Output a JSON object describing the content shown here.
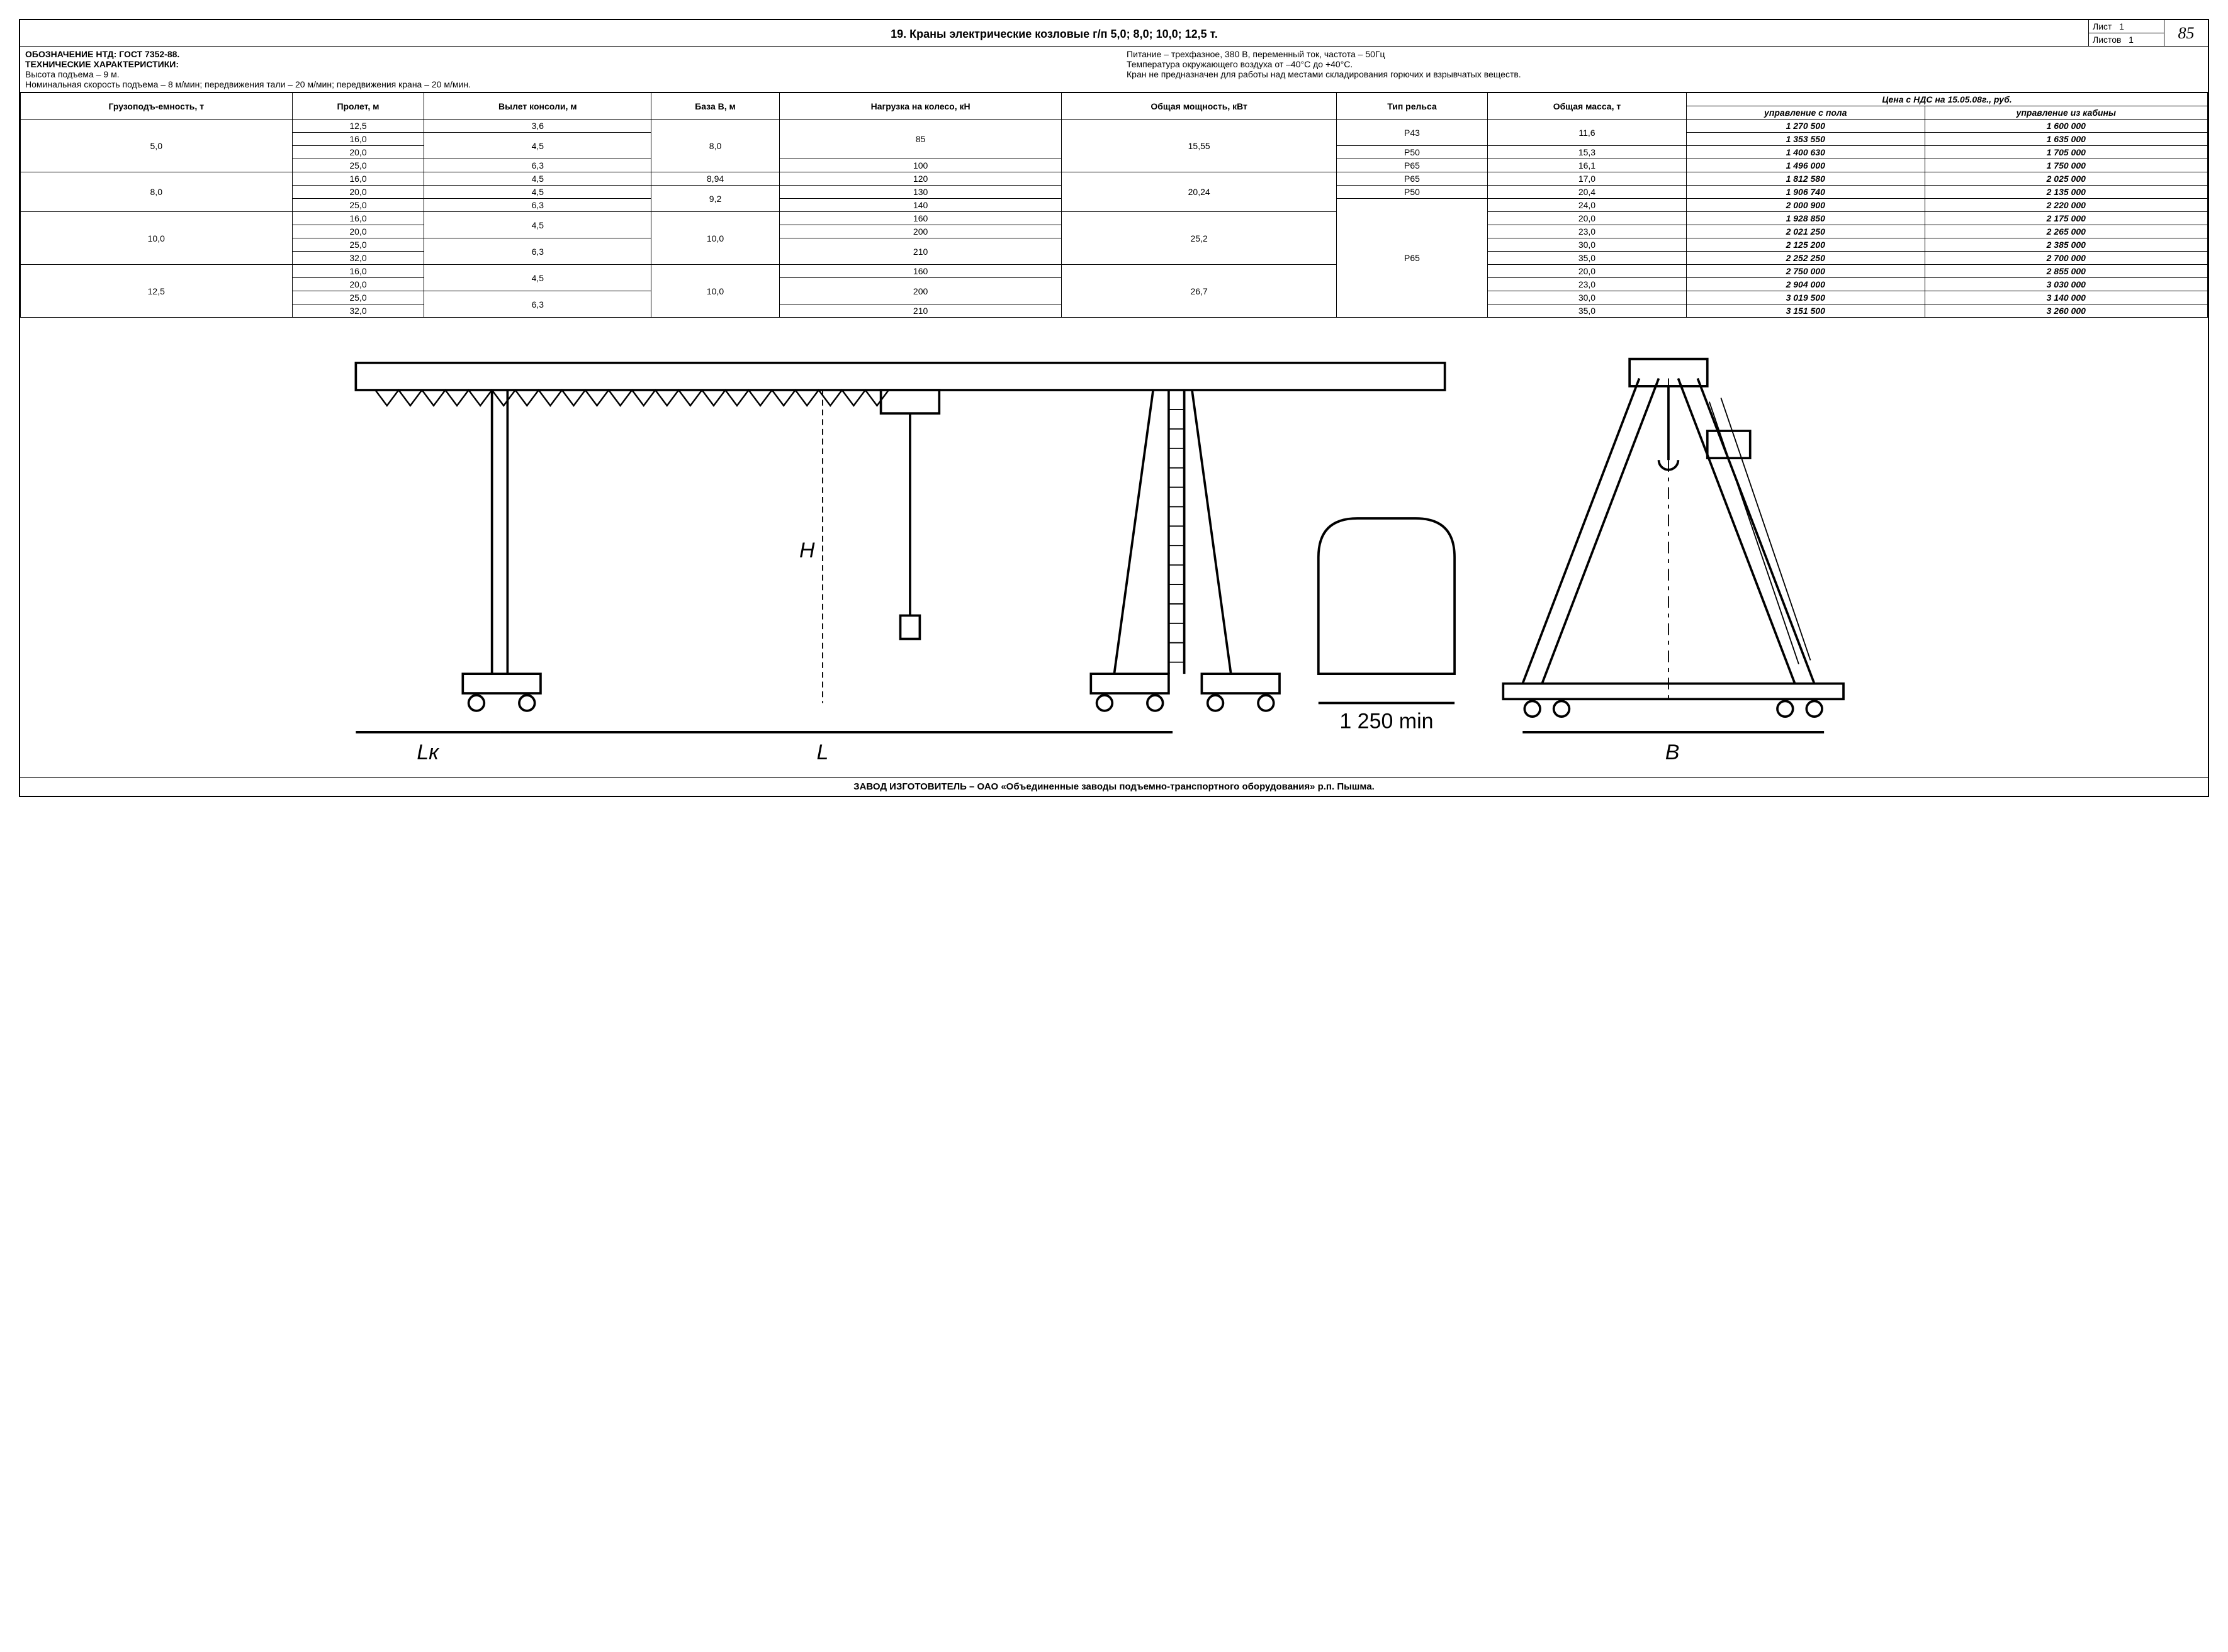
{
  "header": {
    "title": "19. Краны электрические козловые г/п 5,0; 8,0; 10,0; 12,5 т.",
    "sheet_label": "Лист",
    "sheet_no": "1",
    "sheets_label": "Листов",
    "sheets_total": "1",
    "page_number": "85"
  },
  "spec": {
    "ntd_label": "ОБОЗНАЧЕНИЕ НТД:",
    "ntd_value": "ГОСТ 7352-88.",
    "tech_label": "ТЕХНИЧЕСКИЕ ХАРАКТЕРИСТИКИ:",
    "height": "Высота подъема – 9 м.",
    "speed": "Номинальная скорость подъема – 8 м/мин; передвижения тали – 20 м/мин; передвижения крана – 20 м/мин.",
    "power": "Питание – трехфазное, 380 В, переменный ток, частота – 50Гц",
    "temp": "Температура окружающего воздуха от –40°С до +40°С.",
    "note": "Кран не предназначен для работы над местами складирования горючих и взрывчатых веществ."
  },
  "table": {
    "columns": [
      "Грузоподъ-емность, т",
      "Пролет, м",
      "Вылет консоли, м",
      "База В, м",
      "Нагрузка на колесо, кН",
      "Общая мощность, кВт",
      "Тип рельса",
      "Общая масса, т"
    ],
    "price_header": "Цена с НДС на 15.05.08г., руб.",
    "price_sub1": "управление с пола",
    "price_sub2": "управление из кабины",
    "rows": [
      {
        "cap": "5,0",
        "cap_rs": 4,
        "span": "12,5",
        "cons": "3,6",
        "cons_rs": 1,
        "base": "8,0",
        "base_rs": 4,
        "load": "85",
        "load_rs": 3,
        "pow": "15,55",
        "pow_rs": 4,
        "rail": "Р43",
        "rail_rs": 2,
        "mass": "11,6",
        "mass_rs": 2,
        "p1": "1 270 500",
        "p2": "1 600 000"
      },
      {
        "span": "16,0",
        "cons": "4,5",
        "cons_rs": 2,
        "p1": "1 353 550",
        "p2": "1 635 000"
      },
      {
        "span": "20,0",
        "rail": "Р50",
        "rail_rs": 1,
        "mass": "15,3",
        "p1": "1 400 630",
        "p2": "1 705 000"
      },
      {
        "span": "25,0",
        "cons": "6,3",
        "cons_rs": 1,
        "load": "100",
        "load_rs": 1,
        "rail": "Р65",
        "rail_rs": 1,
        "mass": "16,1",
        "p1": "1 496 000",
        "p2": "1 750 000"
      },
      {
        "cap": "8,0",
        "cap_rs": 3,
        "span": "16,0",
        "cons": "4,5",
        "cons_rs": 1,
        "base": "8,94",
        "base_rs": 1,
        "load": "120",
        "load_rs": 1,
        "pow": "20,24",
        "pow_rs": 3,
        "rail": "Р65",
        "rail_rs": 1,
        "mass": "17,0",
        "p1": "1 812 580",
        "p2": "2 025 000"
      },
      {
        "span": "20,0",
        "cons": "4,5",
        "cons_rs": 1,
        "base": "9,2",
        "base_rs": 2,
        "load": "130",
        "load_rs": 1,
        "rail": "Р50",
        "rail_rs": 1,
        "mass": "20,4",
        "p1": "1 906 740",
        "p2": "2 135 000"
      },
      {
        "span": "25,0",
        "cons": "6,3",
        "cons_rs": 1,
        "load": "140",
        "load_rs": 1,
        "rail": "Р65",
        "rail_rs": 9,
        "mass": "24,0",
        "p1": "2 000 900",
        "p2": "2 220 000"
      },
      {
        "cap": "10,0",
        "cap_rs": 4,
        "span": "16,0",
        "cons": "4,5",
        "cons_rs": 2,
        "base": "10,0",
        "base_rs": 4,
        "load": "160",
        "load_rs": 1,
        "pow": "25,2",
        "pow_rs": 4,
        "mass": "20,0",
        "p1": "1 928 850",
        "p2": "2 175 000"
      },
      {
        "span": "20,0",
        "load": "200",
        "load_rs": 1,
        "mass": "23,0",
        "p1": "2 021 250",
        "p2": "2 265 000"
      },
      {
        "span": "25,0",
        "cons": "6,3",
        "cons_rs": 2,
        "load": "210",
        "load_rs": 2,
        "mass": "30,0",
        "p1": "2 125 200",
        "p2": "2 385 000"
      },
      {
        "span": "32,0",
        "mass": "35,0",
        "p1": "2 252 250",
        "p2": "2 700 000"
      },
      {
        "cap": "12,5",
        "cap_rs": 4,
        "span": "16,0",
        "cons": "4,5",
        "cons_rs": 2,
        "base": "10,0",
        "base_rs": 4,
        "load": "160",
        "load_rs": 1,
        "pow": "26,7",
        "pow_rs": 4,
        "mass": "20,0",
        "p1": "2 750 000",
        "p2": "2 855 000"
      },
      {
        "span": "20,0",
        "load": "200",
        "load_rs": 2,
        "mass": "23,0",
        "p1": "2 904 000",
        "p2": "3 030 000"
      },
      {
        "span": "25,0",
        "cons": "6,3",
        "cons_rs": 2,
        "mass": "30,0",
        "p1": "3 019 500",
        "p2": "3 140 000"
      },
      {
        "span": "32,0",
        "load": "210",
        "load_rs": 1,
        "mass": "35,0",
        "p1": "3 151 500",
        "p2": "3 260 000"
      }
    ]
  },
  "drawing": {
    "labels": {
      "Lk": "Lк",
      "L": "L",
      "min": "1 250 min",
      "B": "В",
      "H": "H"
    },
    "colors": {
      "stroke": "#000000",
      "bg": "#ffffff"
    }
  },
  "footer": "ЗАВОД ИЗГОТОВИТЕЛЬ – ОАО «Объединенные заводы подъемно-транспортного оборудования» р.п. Пышма."
}
